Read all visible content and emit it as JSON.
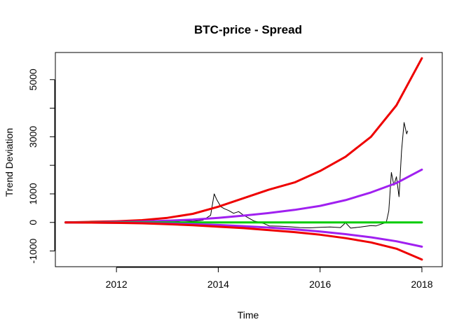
{
  "chart_data": {
    "type": "line",
    "title": "BTC-price - Spread",
    "xlabel": "Time",
    "ylabel": "Trend Deviation",
    "xlim": [
      2010.8,
      2018.4
    ],
    "ylim": [
      -1550,
      5950
    ],
    "x_ticks": [
      2012,
      2014,
      2016,
      2018
    ],
    "x_tick_labels": [
      "2012",
      "2014",
      "2016",
      "2018"
    ],
    "y_ticks": [
      -1000,
      0,
      1000,
      3000,
      5000
    ],
    "y_tick_labels": [
      "-1000",
      "0",
      "1000",
      "3000",
      "5000"
    ],
    "y_minor_ticks": [
      2000,
      4000
    ],
    "grid": false,
    "legend": "none",
    "series": [
      {
        "color": "#000000",
        "width": 1,
        "x": [
          2011.0,
          2011.5,
          2012.0,
          2012.5,
          2013.0,
          2013.3,
          2013.5,
          2013.7,
          2013.85,
          2013.92,
          2013.97,
          2014.05,
          2014.12,
          2014.2,
          2014.3,
          2014.4,
          2014.5,
          2014.6,
          2014.7,
          2014.8,
          2014.9,
          2015.0,
          2015.2,
          2015.4,
          2015.6,
          2015.8,
          2016.0,
          2016.2,
          2016.4,
          2016.5,
          2016.6,
          2016.8,
          2017.0,
          2017.1,
          2017.2,
          2017.3,
          2017.35,
          2017.4,
          2017.45,
          2017.5,
          2017.55,
          2017.6,
          2017.65,
          2017.7,
          2017.72
        ],
        "y": [
          0,
          0,
          0,
          0,
          0,
          60,
          40,
          80,
          250,
          1000,
          800,
          550,
          480,
          420,
          320,
          380,
          250,
          150,
          50,
          10,
          -40,
          -120,
          -130,
          -150,
          -180,
          -190,
          -170,
          -160,
          -180,
          -10,
          -200,
          -160,
          -110,
          -120,
          -60,
          0,
          400,
          1750,
          1300,
          1600,
          900,
          2500,
          3500,
          3100,
          3200
        ]
      },
      {
        "color": "#ee0000",
        "width": 3,
        "x": [
          2011.0,
          2011.5,
          2012.0,
          2012.5,
          2013.0,
          2013.5,
          2014.0,
          2014.5,
          2015.0,
          2015.5,
          2016.0,
          2016.5,
          2017.0,
          2017.5,
          2018.0
        ],
        "y": [
          0,
          20,
          40,
          80,
          160,
          300,
          550,
          850,
          1150,
          1400,
          1800,
          2300,
          3000,
          4100,
          5750
        ]
      },
      {
        "color": "#a020f0",
        "width": 3,
        "x": [
          2011.0,
          2011.5,
          2012.0,
          2012.5,
          2013.0,
          2013.5,
          2014.0,
          2014.5,
          2015.0,
          2015.5,
          2016.0,
          2016.5,
          2017.0,
          2017.5,
          2018.0
        ],
        "y": [
          0,
          5,
          15,
          30,
          60,
          100,
          160,
          240,
          330,
          440,
          580,
          780,
          1050,
          1380,
          1850
        ]
      },
      {
        "color": "#00cc00",
        "width": 3,
        "x": [
          2011.0,
          2018.0
        ],
        "y": [
          0,
          0
        ]
      },
      {
        "color": "#a020f0",
        "width": 3,
        "x": [
          2011.0,
          2011.5,
          2012.0,
          2012.5,
          2013.0,
          2013.5,
          2014.0,
          2014.5,
          2015.0,
          2015.5,
          2016.0,
          2016.5,
          2017.0,
          2017.5,
          2018.0
        ],
        "y": [
          0,
          -5,
          -10,
          -20,
          -40,
          -60,
          -90,
          -130,
          -180,
          -240,
          -320,
          -410,
          -520,
          -660,
          -850
        ]
      },
      {
        "color": "#ee0000",
        "width": 3,
        "x": [
          2011.0,
          2011.5,
          2012.0,
          2012.5,
          2013.0,
          2013.5,
          2014.0,
          2014.5,
          2015.0,
          2015.5,
          2016.0,
          2016.5,
          2017.0,
          2017.5,
          2018.0
        ],
        "y": [
          0,
          -5,
          -15,
          -30,
          -60,
          -100,
          -150,
          -200,
          -270,
          -340,
          -430,
          -550,
          -700,
          -920,
          -1300
        ]
      }
    ]
  }
}
